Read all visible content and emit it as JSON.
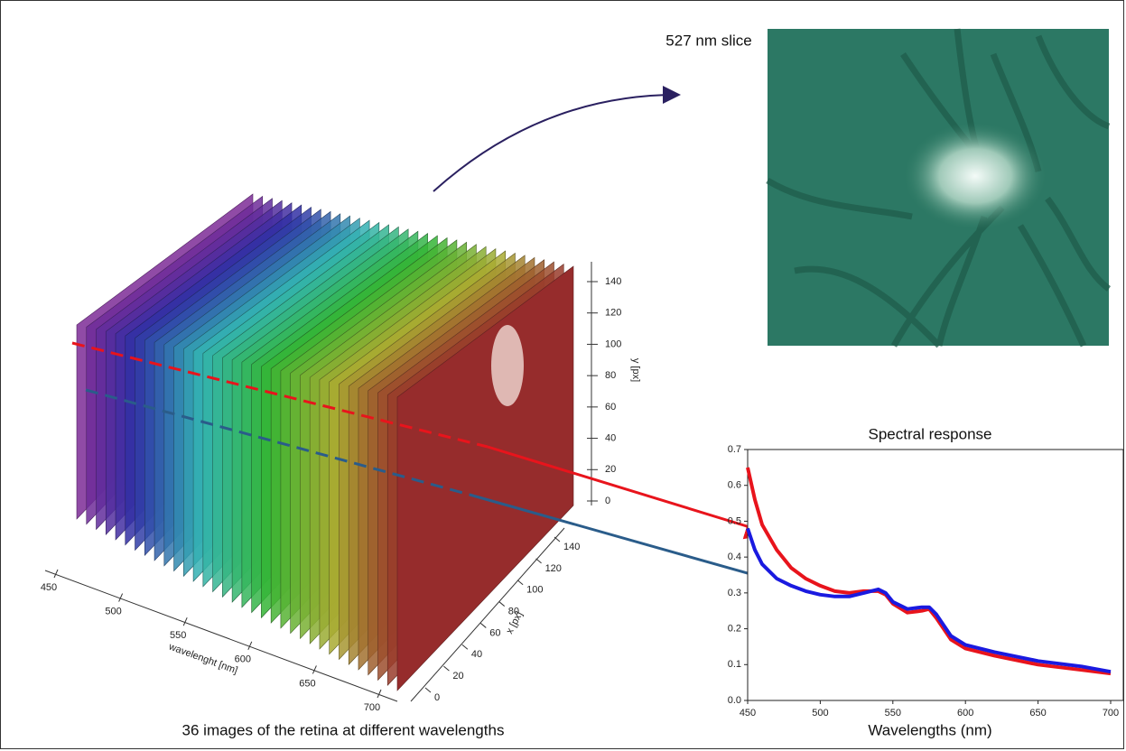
{
  "chart_data": [
    {
      "type": "cube",
      "slice_label": "527 nm slice",
      "caption": "36 images of the retina at different wavelengths",
      "xlabel": "wavelenght [nm]",
      "xlim": [
        450,
        700
      ],
      "xticks": [
        450,
        500,
        550,
        600,
        650,
        700
      ],
      "ylabel": "x [px]",
      "ylim": [
        0,
        140
      ],
      "yticks": [
        0,
        20,
        40,
        60,
        80,
        100,
        120,
        140
      ],
      "zlabel": "y [px]",
      "zlim": [
        0,
        140
      ],
      "zticks": [
        0,
        20,
        40,
        60,
        80,
        100,
        120,
        140
      ]
    },
    {
      "type": "line",
      "title": "Spectral response",
      "xlabel": "Wavelengths (nm)",
      "xlim": [
        450,
        700
      ],
      "xticks": [
        450,
        500,
        550,
        600,
        650,
        700
      ],
      "ylim": [
        0,
        0.7
      ],
      "yticks": [
        {
          "value": 0,
          "label": "0.0"
        },
        {
          "value": 0.1,
          "label": "0.1"
        },
        {
          "value": 0.2,
          "label": "0.2"
        },
        {
          "value": 0.3,
          "label": "0.3"
        },
        {
          "value": 0.4,
          "label": "0.4"
        },
        {
          "value": 0.5,
          "label": "0.5"
        },
        {
          "value": 0.6,
          "label": "0.6"
        },
        {
          "value": 0.7,
          "label": "0.7"
        }
      ],
      "x": [
        450,
        455,
        460,
        470,
        480,
        490,
        500,
        510,
        520,
        530,
        540,
        545,
        550,
        560,
        570,
        575,
        580,
        590,
        600,
        620,
        650,
        680,
        700
      ],
      "series": [
        {
          "color": "#e8141c",
          "values": [
            0.65,
            0.56,
            0.49,
            0.42,
            0.37,
            0.34,
            0.32,
            0.305,
            0.3,
            0.305,
            0.305,
            0.295,
            0.27,
            0.245,
            0.25,
            0.255,
            0.23,
            0.17,
            0.145,
            0.125,
            0.1,
            0.085,
            0.075
          ]
        },
        {
          "color": "#1a1ae0",
          "values": [
            0.48,
            0.42,
            0.38,
            0.34,
            0.32,
            0.305,
            0.295,
            0.29,
            0.29,
            0.3,
            0.31,
            0.3,
            0.275,
            0.255,
            0.26,
            0.26,
            0.24,
            0.18,
            0.155,
            0.135,
            0.11,
            0.095,
            0.08
          ]
        }
      ]
    }
  ]
}
